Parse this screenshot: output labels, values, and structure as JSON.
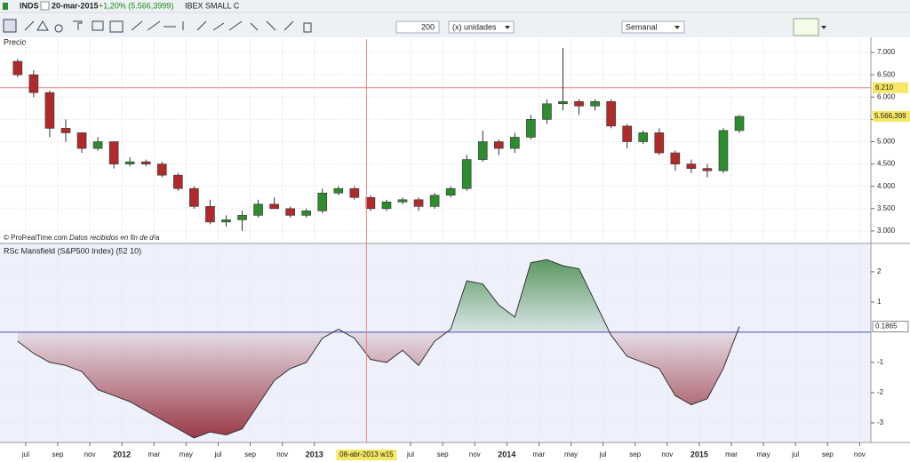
{
  "toolbar": {
    "symbol": "INDS",
    "date": "20-mar-2015",
    "change": "+1,20% (5.566,3999)",
    "market": "IBEX SMALL C",
    "units_count": "200",
    "units": "(x) unidades",
    "period": "Semanal"
  },
  "chart_data": [
    {
      "type": "candlestick",
      "title": "Precio",
      "x": [
        5.5,
        6.5,
        7.5,
        8.5,
        9.5,
        10.5,
        11.5,
        12.5,
        13.5,
        14.5,
        15.5,
        16.5,
        17.5,
        18.5,
        19.5,
        20.5,
        21.5,
        22.5,
        23.5,
        24.5,
        25.5,
        26.5,
        27.5,
        28.5,
        29.5,
        30.5,
        31.5,
        32.5,
        33.5,
        34.5,
        35.5,
        36.5,
        37.5,
        38.5,
        39.5,
        40.5,
        41.5,
        42.5,
        43.5,
        44.5,
        45.5,
        46.5,
        47.5,
        48.5,
        49.5,
        50.5
      ],
      "open": [
        6.8,
        6.5,
        6.1,
        5.3,
        5.2,
        4.85,
        5.0,
        4.5,
        4.55,
        4.5,
        4.25,
        3.95,
        3.55,
        3.2,
        3.25,
        3.35,
        3.6,
        3.5,
        3.35,
        3.45,
        3.85,
        3.95,
        3.75,
        3.5,
        3.65,
        3.7,
        3.55,
        3.8,
        3.95,
        4.6,
        5.0,
        4.85,
        5.1,
        5.5,
        5.85,
        5.9,
        5.8,
        5.9,
        5.35,
        5.0,
        5.2,
        4.75,
        4.5,
        4.4,
        4.35,
        5.25
      ],
      "high": [
        6.85,
        6.6,
        6.15,
        5.5,
        5.2,
        5.1,
        5.0,
        4.65,
        4.6,
        4.55,
        4.3,
        4.0,
        3.7,
        3.35,
        3.45,
        3.7,
        3.75,
        3.55,
        3.5,
        3.95,
        4.0,
        4.0,
        3.8,
        3.7,
        3.75,
        3.75,
        3.85,
        4.0,
        4.7,
        5.25,
        5.05,
        5.2,
        5.6,
        5.95,
        7.1,
        5.95,
        5.95,
        5.95,
        5.4,
        5.25,
        5.3,
        4.8,
        4.6,
        4.5,
        5.3,
        5.6
      ],
      "low": [
        6.45,
        6.0,
        5.1,
        5.0,
        4.75,
        4.8,
        4.4,
        4.45,
        4.45,
        4.2,
        3.9,
        3.5,
        3.15,
        3.1,
        3.0,
        3.3,
        3.5,
        3.3,
        3.3,
        3.4,
        3.8,
        3.7,
        3.45,
        3.45,
        3.6,
        3.45,
        3.5,
        3.75,
        3.9,
        4.55,
        4.7,
        4.75,
        5.05,
        5.4,
        5.7,
        5.6,
        5.7,
        5.3,
        4.85,
        4.95,
        4.7,
        4.35,
        4.3,
        4.2,
        4.3,
        5.2
      ],
      "close": [
        6.5,
        6.1,
        5.3,
        5.2,
        4.85,
        5.0,
        4.5,
        4.55,
        4.5,
        4.25,
        3.95,
        3.55,
        3.2,
        3.25,
        3.35,
        3.6,
        3.5,
        3.35,
        3.45,
        3.85,
        3.95,
        3.75,
        3.5,
        3.65,
        3.7,
        3.55,
        3.8,
        3.95,
        4.6,
        5.0,
        4.85,
        5.1,
        5.5,
        5.85,
        5.9,
        5.8,
        5.9,
        5.35,
        5.0,
        5.2,
        4.75,
        4.5,
        4.4,
        4.35,
        5.25,
        5.566
      ],
      "xlim": [
        4.4,
        58.7
      ],
      "ylim": [
        2.76,
        7.14
      ],
      "yticks": [
        {
          "value": 3,
          "label": "3.000"
        },
        {
          "value": 3.5,
          "label": "3.500"
        },
        {
          "value": 4,
          "label": "4.000"
        },
        {
          "value": 4.5,
          "label": "4.500"
        },
        {
          "value": 5,
          "label": "5.000"
        },
        {
          "value": 5.5,
          "label": "5.500"
        },
        {
          "value": 6,
          "label": "6.000"
        },
        {
          "value": 6.5,
          "label": "6.500"
        },
        {
          "value": 7,
          "label": "7.000"
        }
      ],
      "grid": true,
      "up_color": "#2e8b2e",
      "down_color": "#b02a2a",
      "hline": {
        "value": 6.21,
        "label": "6.210"
      },
      "last": {
        "value": 5.566399,
        "label": "5.566,399"
      },
      "source": "© ProRealTime.com",
      "note": "Datos recibidos en fin de día"
    },
    {
      "type": "area",
      "title": "RSc Mansfield (S&P500 Index) (52 10)",
      "x": [
        5.5,
        6.5,
        7.5,
        8.5,
        9.5,
        10.5,
        11.5,
        12.5,
        13.5,
        14.5,
        15.5,
        16.5,
        17.5,
        18.5,
        19.5,
        20.5,
        21.5,
        22.5,
        23.5,
        24.5,
        25.5,
        26.5,
        27.5,
        28.5,
        29.5,
        30.5,
        31.5,
        32.5,
        33.5,
        34.5,
        35.5,
        36.5,
        37.5,
        38.5,
        39.5,
        40.5,
        41.5,
        42.5,
        43.5,
        44.5,
        45.5,
        46.5,
        47.5,
        48.5,
        49.5,
        50.5
      ],
      "values": [
        -0.3,
        -0.7,
        -1.0,
        -1.1,
        -1.3,
        -1.9,
        -2.1,
        -2.3,
        -2.6,
        -2.9,
        -3.2,
        -3.5,
        -3.3,
        -3.4,
        -3.2,
        -2.4,
        -1.6,
        -1.2,
        -1.0,
        -0.2,
        0.1,
        -0.2,
        -0.9,
        -1.0,
        -0.6,
        -1.1,
        -0.3,
        0.1,
        1.7,
        1.6,
        0.9,
        0.5,
        2.3,
        2.4,
        2.2,
        2.1,
        1.0,
        -0.1,
        -0.8,
        -1.0,
        -1.2,
        -2.1,
        -2.4,
        -2.2,
        -1.2,
        0.19
      ],
      "xlim": [
        4.4,
        58.7
      ],
      "ylim": [
        -3.62,
        2.88
      ],
      "yticks": [
        -3,
        -2,
        -1,
        1,
        2
      ],
      "xticks": [
        {
          "value": 6,
          "label": "jul"
        },
        {
          "value": 8,
          "label": "sep"
        },
        {
          "value": 10,
          "label": "nov"
        },
        {
          "value": 12,
          "label": "2012"
        },
        {
          "value": 14,
          "label": "mar"
        },
        {
          "value": 16,
          "label": "may"
        },
        {
          "value": 18,
          "label": "jul"
        },
        {
          "value": 20,
          "label": "sep"
        },
        {
          "value": 22,
          "label": "nov"
        },
        {
          "value": 24,
          "label": "2013"
        },
        {
          "value": 30,
          "label": "jul"
        },
        {
          "value": 32,
          "label": "sep"
        },
        {
          "value": 34,
          "label": "nov"
        },
        {
          "value": 36,
          "label": "2014"
        },
        {
          "value": 38,
          "label": "mar"
        },
        {
          "value": 40,
          "label": "may"
        },
        {
          "value": 42,
          "label": "jul"
        },
        {
          "value": 44,
          "label": "sep"
        },
        {
          "value": 46,
          "label": "nov"
        },
        {
          "value": 48,
          "label": "2015"
        },
        {
          "value": 50,
          "label": "mar"
        },
        {
          "value": 52,
          "label": "may"
        },
        {
          "value": 54,
          "label": "jul"
        },
        {
          "value": 56,
          "label": "sep"
        },
        {
          "value": 58,
          "label": "nov"
        }
      ],
      "grid": true,
      "pos_color": "#2e7d32",
      "neg_color": "#8e1f2c",
      "line_color": "#333333",
      "zero_color": "#4a4ab0",
      "last": {
        "value": 0.1865,
        "label": "0.1865"
      },
      "cursor": {
        "value": 27.25,
        "label": "08-abr-2013 w15"
      }
    }
  ]
}
